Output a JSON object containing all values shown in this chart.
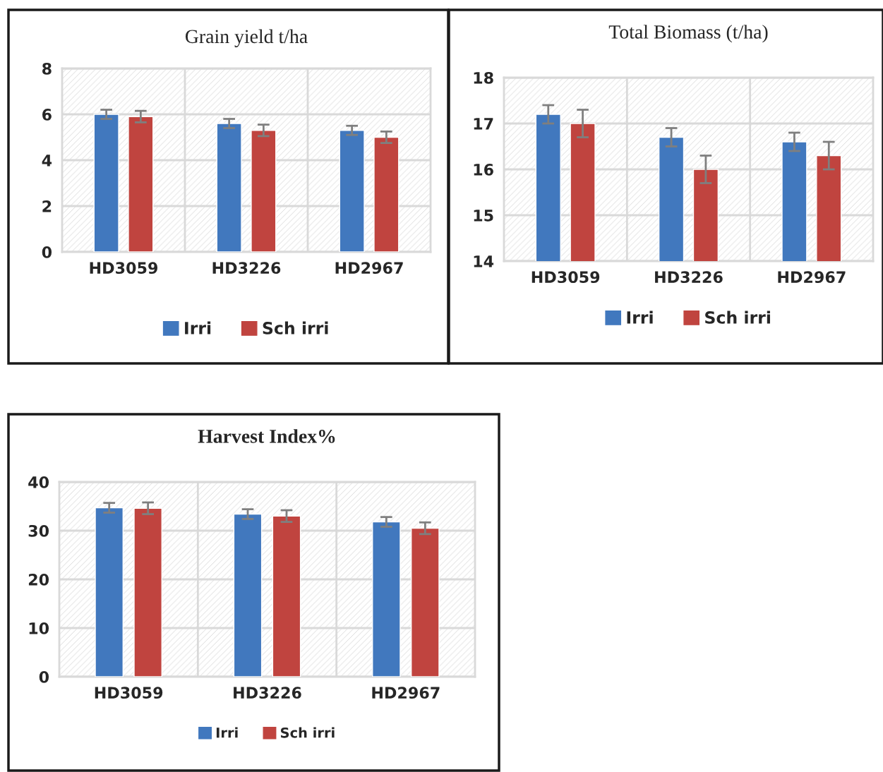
{
  "chart_data": [
    {
      "type": "bar",
      "title": "Grain yield t/ha",
      "categories": [
        "HD3059",
        "HD3226",
        "HD2967"
      ],
      "series": [
        {
          "name": "Irri",
          "color": "#4178be",
          "values": [
            6.0,
            5.6,
            5.3
          ],
          "errors": [
            0.2,
            0.2,
            0.2
          ]
        },
        {
          "name": "Sch irri",
          "color": "#c0443f",
          "values": [
            5.9,
            5.3,
            5.0
          ],
          "errors": [
            0.25,
            0.25,
            0.25
          ]
        }
      ],
      "ylim": [
        0,
        8
      ],
      "yticks": [
        0,
        2,
        4,
        6,
        8
      ],
      "grid": true,
      "legend": "bottom"
    },
    {
      "type": "bar",
      "title": "Total Biomass (t/ha)",
      "categories": [
        "HD3059",
        "HD3226",
        "HD2967"
      ],
      "series": [
        {
          "name": "Irri",
          "color": "#4178be",
          "values": [
            17.2,
            16.7,
            16.6
          ],
          "errors": [
            0.2,
            0.2,
            0.2
          ]
        },
        {
          "name": "Sch irri",
          "color": "#c0443f",
          "values": [
            17.0,
            16.0,
            16.3
          ],
          "errors": [
            0.3,
            0.3,
            0.3
          ]
        }
      ],
      "ylim": [
        14,
        18
      ],
      "yticks": [
        14,
        15,
        16,
        17,
        18
      ],
      "grid": true,
      "legend": "bottom"
    },
    {
      "type": "bar",
      "title": "Harvest Index%",
      "categories": [
        "HD3059",
        "HD3226",
        "HD2967"
      ],
      "series": [
        {
          "name": "Irri",
          "color": "#4178be",
          "values": [
            34.7,
            33.4,
            31.8
          ],
          "errors": [
            1.0,
            1.0,
            1.0
          ]
        },
        {
          "name": "Sch irri",
          "color": "#c0443f",
          "values": [
            34.6,
            33.0,
            30.5
          ],
          "errors": [
            1.2,
            1.2,
            1.2
          ]
        }
      ],
      "ylim": [
        0,
        40
      ],
      "yticks": [
        0,
        10,
        20,
        30,
        40
      ],
      "grid": true,
      "legend": "bottom"
    }
  ]
}
